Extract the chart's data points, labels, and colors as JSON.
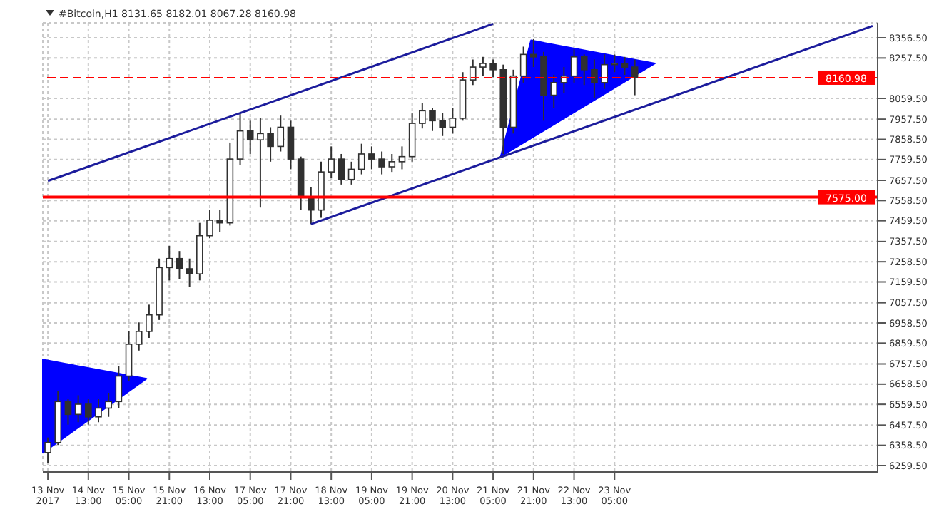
{
  "chart_data": {
    "type": "candlestick",
    "title": "#Bitcoin,H1  8131.65 8182.01 8067.28 8160.98",
    "color": "#303030",
    "x": [
      "2017-11-13T21:00",
      "2017-11-14T01:00",
      "2017-11-14T05:00",
      "2017-11-14T09:00",
      "2017-11-14T13:00",
      "2017-11-14T17:00",
      "2017-11-14T21:00",
      "2017-11-15T01:00",
      "2017-11-15T05:00",
      "2017-11-15T09:00",
      "2017-11-15T13:00",
      "2017-11-15T17:00",
      "2017-11-15T21:00",
      "2017-11-16T01:00",
      "2017-11-16T05:00",
      "2017-11-16T09:00",
      "2017-11-16T13:00",
      "2017-11-16T17:00",
      "2017-11-16T21:00",
      "2017-11-17T01:00",
      "2017-11-17T05:00",
      "2017-11-17T09:00",
      "2017-11-17T13:00",
      "2017-11-17T17:00",
      "2017-11-17T21:00",
      "2017-11-18T01:00",
      "2017-11-18T05:00",
      "2017-11-18T09:00",
      "2017-11-18T13:00",
      "2017-11-18T17:00",
      "2017-11-18T21:00",
      "2017-11-19T01:00",
      "2017-11-19T05:00",
      "2017-11-19T09:00",
      "2017-11-19T13:00",
      "2017-11-19T17:00",
      "2017-11-19T21:00",
      "2017-11-20T01:00",
      "2017-11-20T05:00",
      "2017-11-20T09:00",
      "2017-11-20T13:00",
      "2017-11-20T17:00",
      "2017-11-20T21:00",
      "2017-11-21T01:00",
      "2017-11-21T05:00",
      "2017-11-21T09:00",
      "2017-11-21T13:00",
      "2017-11-21T17:00",
      "2017-11-21T21:00",
      "2017-11-22T01:00",
      "2017-11-22T05:00",
      "2017-11-22T09:00",
      "2017-11-22T13:00",
      "2017-11-22T17:00",
      "2017-11-22T21:00",
      "2017-11-23T01:00",
      "2017-11-23T05:00",
      "2017-11-23T09:00",
      "2017-11-23T13:00"
    ],
    "ohlc": [
      [
        6323,
        6397,
        6272,
        6372
      ],
      [
        6372,
        6623,
        6360,
        6573
      ],
      [
        6573,
        6585,
        6460,
        6510
      ],
      [
        6510,
        6604,
        6472,
        6560
      ],
      [
        6560,
        6585,
        6460,
        6498
      ],
      [
        6498,
        6585,
        6472,
        6541
      ],
      [
        6541,
        6616,
        6498,
        6573
      ],
      [
        6573,
        6748,
        6541,
        6698
      ],
      [
        6698,
        6917,
        6673,
        6854
      ],
      [
        6854,
        6961,
        6823,
        6917
      ],
      [
        6917,
        7048,
        6885,
        6998
      ],
      [
        6998,
        7274,
        6973,
        7230
      ],
      [
        7230,
        7336,
        7167,
        7274
      ],
      [
        7274,
        7311,
        7173,
        7224
      ],
      [
        7224,
        7274,
        7136,
        7199
      ],
      [
        7199,
        7449,
        7167,
        7386
      ],
      [
        7386,
        7512,
        7374,
        7462
      ],
      [
        7462,
        7512,
        7405,
        7449
      ],
      [
        7449,
        7843,
        7436,
        7762
      ],
      [
        7762,
        7987,
        7731,
        7900
      ],
      [
        7900,
        7950,
        7787,
        7856
      ],
      [
        7856,
        7962,
        7524,
        7887
      ],
      [
        7887,
        7918,
        7749,
        7824
      ],
      [
        7824,
        7975,
        7799,
        7918
      ],
      [
        7918,
        7950,
        7712,
        7762
      ],
      [
        7762,
        7774,
        7512,
        7574
      ],
      [
        7574,
        7624,
        7443,
        7512
      ],
      [
        7512,
        7749,
        7474,
        7699
      ],
      [
        7699,
        7824,
        7668,
        7762
      ],
      [
        7762,
        7787,
        7637,
        7662
      ],
      [
        7662,
        7749,
        7637,
        7712
      ],
      [
        7712,
        7837,
        7687,
        7787
      ],
      [
        7787,
        7824,
        7712,
        7762
      ],
      [
        7762,
        7799,
        7687,
        7724
      ],
      [
        7724,
        7787,
        7699,
        7749
      ],
      [
        7749,
        7824,
        7712,
        7774
      ],
      [
        7774,
        7987,
        7749,
        7937
      ],
      [
        7937,
        8037,
        7912,
        7999
      ],
      [
        7999,
        8012,
        7900,
        7950
      ],
      [
        7950,
        7987,
        7875,
        7918
      ],
      [
        7918,
        8012,
        7887,
        7962
      ],
      [
        7962,
        8188,
        7950,
        8150
      ],
      [
        8150,
        8250,
        8125,
        8213
      ],
      [
        8213,
        8263,
        8169,
        8231
      ],
      [
        8231,
        8250,
        8163,
        8200
      ],
      [
        8200,
        8225,
        7787,
        7918
      ],
      [
        7918,
        8200,
        7887,
        8169
      ],
      [
        8169,
        8313,
        8137,
        8275
      ],
      [
        8275,
        8350,
        8213,
        8263
      ],
      [
        8263,
        8288,
        7950,
        8075
      ],
      [
        8075,
        8175,
        8012,
        8137
      ],
      [
        8137,
        8213,
        8087,
        8169
      ],
      [
        8169,
        8300,
        8137,
        8263
      ],
      [
        8263,
        8275,
        8125,
        8200
      ],
      [
        8200,
        8250,
        8062,
        8137
      ],
      [
        8137,
        8275,
        8106,
        8225
      ],
      [
        8225,
        8275,
        8188,
        8231
      ],
      [
        8231,
        8263,
        8175,
        8213
      ],
      [
        8213,
        8250,
        8075,
        8161
      ]
    ],
    "series": [
      {
        "type": "line",
        "color": "#1c1c9c",
        "x": [
          "2017-11-13T21:00",
          "2017-11-21T05:00"
        ],
        "values": [
          7655,
          8425
        ]
      },
      {
        "type": "line",
        "color": "#1c1c9c",
        "x": [
          "2017-11-18T05:00",
          "2017-11-27T11:00"
        ],
        "values": [
          7443,
          8415
        ]
      },
      {
        "type": "area",
        "color": "#0000ff",
        "x": [
          "2017-11-21T08:00",
          "2017-11-21T20:00",
          "2017-11-23T21:00"
        ],
        "values": [
          7774,
          8344,
          8231
        ]
      },
      {
        "type": "area",
        "color": "#0000ff",
        "x": [
          "2017-11-13T19:00",
          "2017-11-15T12:00",
          "2017-11-13T19:00"
        ],
        "values": [
          6779,
          6685,
          6322
        ]
      }
    ],
    "ref_lines": [
      {
        "axis": "y",
        "value": 7575,
        "label": "7575.00",
        "color": "#ff0000",
        "line_style": "solid"
      },
      {
        "axis": "y",
        "value": 8160.98,
        "label": "8160.98",
        "color": "#ff0000",
        "line_style": "dashed"
      }
    ],
    "xlim": [
      "2017-11-13T19:00",
      "2017-11-27T13:00"
    ],
    "xticks": [
      {
        "value": "2017-11-13T21:00",
        "label": "13 Nov 2017"
      },
      {
        "value": "2017-11-14T13:00",
        "label": "14 Nov 13:00"
      },
      {
        "value": "2017-11-15T05:00",
        "label": "15 Nov 05:00"
      },
      {
        "value": "2017-11-15T21:00",
        "label": "15 Nov 21:00"
      },
      {
        "value": "2017-11-16T13:00",
        "label": "16 Nov 13:00"
      },
      {
        "value": "2017-11-17T05:00",
        "label": "17 Nov 05:00"
      },
      {
        "value": "2017-11-17T21:00",
        "label": "17 Nov 21:00"
      },
      {
        "value": "2017-11-18T13:00",
        "label": "18 Nov 13:00"
      },
      {
        "value": "2017-11-19T05:00",
        "label": "19 Nov 05:00"
      },
      {
        "value": "2017-11-19T21:00",
        "label": "19 Nov 21:00"
      },
      {
        "value": "2017-11-20T13:00",
        "label": "20 Nov 13:00"
      },
      {
        "value": "2017-11-21T05:00",
        "label": "21 Nov 05:00"
      },
      {
        "value": "2017-11-21T21:00",
        "label": "21 Nov 21:00"
      },
      {
        "value": "2017-11-22T13:00",
        "label": "22 Nov 13:00"
      },
      {
        "value": "2017-11-23T05:00",
        "label": "23 Nov 05:00"
      }
    ],
    "ylim": [
      6228,
      8430
    ],
    "yticks": [
      {
        "value": 8356.5,
        "label": "8356.50"
      },
      {
        "value": 8257.5,
        "label": "8257.50"
      },
      {
        "value": 8059.5,
        "label": "8059.50"
      },
      {
        "value": 7957.5,
        "label": "7957.50"
      },
      {
        "value": 7858.5,
        "label": "7858.50"
      },
      {
        "value": 7759.5,
        "label": "7759.50"
      },
      {
        "value": 7657.5,
        "label": "7657.50"
      },
      {
        "value": 7558.5,
        "label": "7558.50"
      },
      {
        "value": 7459.5,
        "label": "7459.50"
      },
      {
        "value": 7357.5,
        "label": "7357.50"
      },
      {
        "value": 7258.5,
        "label": "7258.50"
      },
      {
        "value": 7159.5,
        "label": "7159.50"
      },
      {
        "value": 7057.5,
        "label": "7057.50"
      },
      {
        "value": 6958.5,
        "label": "6958.50"
      },
      {
        "value": 6859.5,
        "label": "6859.50"
      },
      {
        "value": 6757.5,
        "label": "6757.50"
      },
      {
        "value": 6658.5,
        "label": "6658.50"
      },
      {
        "value": 6559.5,
        "label": "6559.50"
      },
      {
        "value": 6457.5,
        "label": "6457.50"
      },
      {
        "value": 6358.5,
        "label": "6358.50"
      },
      {
        "value": 6259.5,
        "label": "6259.50"
      }
    ],
    "grid": true
  }
}
